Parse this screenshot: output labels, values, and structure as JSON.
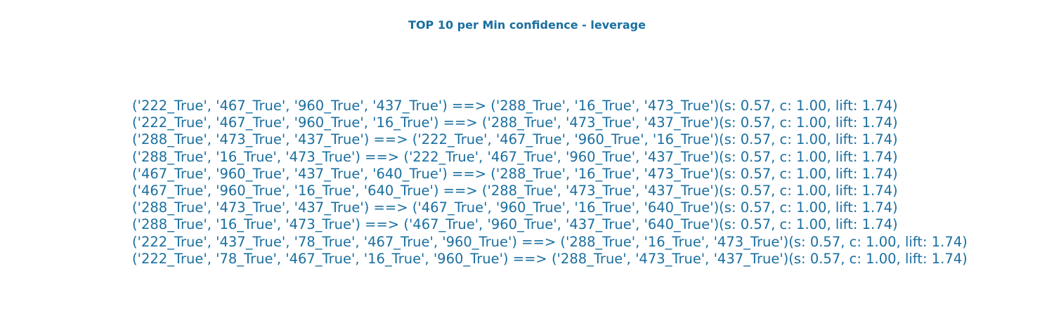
{
  "title": "TOP 10 per Min confidence - leverage",
  "colors": {
    "text": "#1a6fa0",
    "background": "#ffffff"
  },
  "rules": [
    "('222_True', '467_True', '960_True', '437_True') ==> ('288_True', '16_True', '473_True')(s: 0.57, c: 1.00, lift: 1.74)",
    "('222_True', '467_True', '960_True', '16_True') ==> ('288_True', '473_True', '437_True')(s: 0.57, c: 1.00, lift: 1.74)",
    "('288_True', '473_True', '437_True') ==> ('222_True', '467_True', '960_True', '16_True')(s: 0.57, c: 1.00, lift: 1.74)",
    "('288_True', '16_True', '473_True') ==> ('222_True', '467_True', '960_True', '437_True')(s: 0.57, c: 1.00, lift: 1.74)",
    "('467_True', '960_True', '437_True', '640_True') ==> ('288_True', '16_True', '473_True')(s: 0.57, c: 1.00, lift: 1.74)",
    "('467_True', '960_True', '16_True', '640_True') ==> ('288_True', '473_True', '437_True')(s: 0.57, c: 1.00, lift: 1.74)",
    "('288_True', '473_True', '437_True') ==> ('467_True', '960_True', '16_True', '640_True')(s: 0.57, c: 1.00, lift: 1.74)",
    "('288_True', '16_True', '473_True') ==> ('467_True', '960_True', '437_True', '640_True')(s: 0.57, c: 1.00, lift: 1.74)",
    "('222_True', '437_True', '78_True', '467_True', '960_True') ==> ('288_True', '16_True', '473_True')(s: 0.57, c: 1.00, lift: 1.74)",
    "('222_True', '78_True', '467_True', '16_True', '960_True') ==> ('288_True', '473_True', '437_True')(s: 0.57, c: 1.00, lift: 1.74)"
  ]
}
